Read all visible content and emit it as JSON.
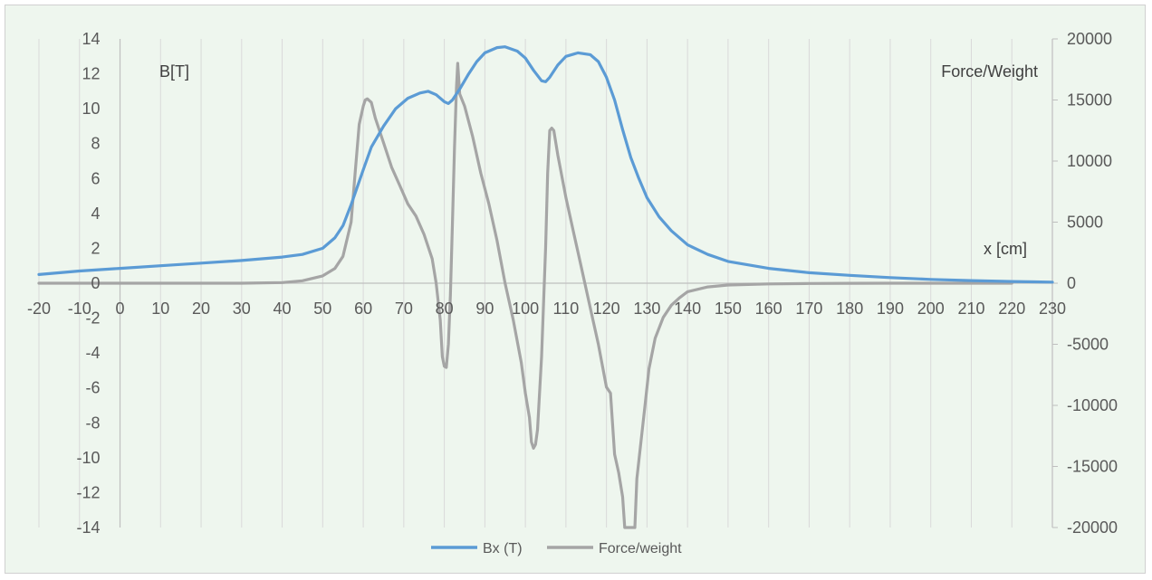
{
  "chart_data": {
    "type": "line",
    "title": "",
    "xlabel": "x [cm]",
    "ylabel_left": "B[T]",
    "ylabel_right": "Force/Weight",
    "xlim": [
      -20,
      230
    ],
    "ylim_left": [
      -14,
      14
    ],
    "ylim_right": [
      -20000,
      20000
    ],
    "grid": "vertical",
    "legend": "bottom",
    "x_ticks": [
      "-20",
      "-10",
      "0",
      "10",
      "20",
      "30",
      "40",
      "50",
      "60",
      "70",
      "80",
      "90",
      "100",
      "110",
      "120",
      "130",
      "140",
      "150",
      "160",
      "170",
      "180",
      "190",
      "200",
      "210",
      "220",
      "230"
    ],
    "y_left_ticks": [
      "14",
      "12",
      "10",
      "8",
      "6",
      "4",
      "2",
      "0",
      "-2",
      "-4",
      "-6",
      "-8",
      "-10",
      "-12",
      "-14"
    ],
    "y_right_ticks": [
      "20000",
      "15000",
      "10000",
      "5000",
      "0",
      "-5000",
      "-10000",
      "-15000",
      "-20000"
    ],
    "series": [
      {
        "name": "Bx (T)",
        "axis": "left",
        "color": "#5b9bd5",
        "points": [
          [
            -20,
            0.5
          ],
          [
            -10,
            0.7
          ],
          [
            0,
            0.85
          ],
          [
            10,
            1.0
          ],
          [
            20,
            1.15
          ],
          [
            30,
            1.3
          ],
          [
            40,
            1.5
          ],
          [
            45,
            1.65
          ],
          [
            50,
            2.0
          ],
          [
            53,
            2.6
          ],
          [
            55,
            3.3
          ],
          [
            57,
            4.5
          ],
          [
            60,
            6.5
          ],
          [
            62,
            7.8
          ],
          [
            65,
            9.0
          ],
          [
            68,
            10.0
          ],
          [
            71,
            10.6
          ],
          [
            74,
            10.9
          ],
          [
            76,
            11.0
          ],
          [
            78,
            10.8
          ],
          [
            80,
            10.4
          ],
          [
            81,
            10.3
          ],
          [
            82,
            10.5
          ],
          [
            84,
            11.2
          ],
          [
            86,
            12.0
          ],
          [
            88,
            12.7
          ],
          [
            90,
            13.2
          ],
          [
            93,
            13.5
          ],
          [
            95,
            13.55
          ],
          [
            98,
            13.3
          ],
          [
            100,
            12.9
          ],
          [
            102,
            12.2
          ],
          [
            104,
            11.6
          ],
          [
            105,
            11.55
          ],
          [
            106,
            11.8
          ],
          [
            108,
            12.5
          ],
          [
            110,
            13.0
          ],
          [
            113,
            13.2
          ],
          [
            116,
            13.1
          ],
          [
            118,
            12.7
          ],
          [
            120,
            11.8
          ],
          [
            122,
            10.5
          ],
          [
            124,
            8.8
          ],
          [
            126,
            7.2
          ],
          [
            128,
            6.0
          ],
          [
            130,
            4.9
          ],
          [
            133,
            3.8
          ],
          [
            136,
            3.0
          ],
          [
            140,
            2.2
          ],
          [
            145,
            1.65
          ],
          [
            150,
            1.25
          ],
          [
            160,
            0.85
          ],
          [
            170,
            0.6
          ],
          [
            180,
            0.45
          ],
          [
            190,
            0.32
          ],
          [
            200,
            0.22
          ],
          [
            210,
            0.15
          ],
          [
            220,
            0.1
          ],
          [
            230,
            0.06
          ]
        ]
      },
      {
        "name": "Force/weight",
        "axis": "right",
        "color": "#a5a5a5",
        "points": [
          [
            -20,
            0
          ],
          [
            30,
            0
          ],
          [
            40,
            50
          ],
          [
            45,
            200
          ],
          [
            50,
            600
          ],
          [
            53,
            1200
          ],
          [
            55,
            2200
          ],
          [
            57,
            5000
          ],
          [
            58,
            9000
          ],
          [
            59,
            13000
          ],
          [
            60,
            14500
          ],
          [
            60.5,
            15000
          ],
          [
            61,
            15100
          ],
          [
            62,
            14800
          ],
          [
            63,
            13500
          ],
          [
            65,
            11500
          ],
          [
            67,
            9500
          ],
          [
            69,
            8000
          ],
          [
            71,
            6500
          ],
          [
            73,
            5500
          ],
          [
            75,
            4000
          ],
          [
            77,
            2000
          ],
          [
            78,
            0
          ],
          [
            79,
            -3000
          ],
          [
            79.5,
            -6000
          ],
          [
            80,
            -6800
          ],
          [
            80.5,
            -6900
          ],
          [
            81,
            -5000
          ],
          [
            81.5,
            -1000
          ],
          [
            82,
            5000
          ],
          [
            82.5,
            11000
          ],
          [
            83,
            16000
          ],
          [
            83.3,
            18000
          ],
          [
            83.8,
            15500
          ],
          [
            85,
            14500
          ],
          [
            87,
            12000
          ],
          [
            89,
            9000
          ],
          [
            91,
            6500
          ],
          [
            93,
            3500
          ],
          [
            95,
            0
          ],
          [
            97,
            -3000
          ],
          [
            99,
            -6500
          ],
          [
            100,
            -9000
          ],
          [
            101,
            -11000
          ],
          [
            101.5,
            -13000
          ],
          [
            102,
            -13500
          ],
          [
            102.5,
            -13200
          ],
          [
            103,
            -12000
          ],
          [
            104,
            -6000
          ],
          [
            105,
            3000
          ],
          [
            105.5,
            9000
          ],
          [
            106,
            12500
          ],
          [
            106.5,
            12700
          ],
          [
            107,
            12500
          ],
          [
            108,
            10500
          ],
          [
            110,
            7000
          ],
          [
            112,
            4000
          ],
          [
            114,
            1000
          ],
          [
            116,
            -2000
          ],
          [
            118,
            -5000
          ],
          [
            120,
            -8500
          ],
          [
            121,
            -9000
          ],
          [
            122,
            -14000
          ],
          [
            123,
            -15500
          ],
          [
            124,
            -17500
          ],
          [
            124.5,
            -20000
          ],
          [
            125,
            -21000
          ],
          [
            126,
            -22000
          ],
          [
            127,
            -20000
          ],
          [
            127.5,
            -16000
          ],
          [
            128.5,
            -13000
          ],
          [
            129.5,
            -10000
          ],
          [
            130.5,
            -7000
          ],
          [
            132,
            -4500
          ],
          [
            134,
            -2800
          ],
          [
            136,
            -1800
          ],
          [
            138,
            -1200
          ],
          [
            140,
            -700
          ],
          [
            145,
            -300
          ],
          [
            150,
            -150
          ],
          [
            160,
            -60
          ],
          [
            170,
            -20
          ],
          [
            180,
            -5
          ],
          [
            190,
            0
          ],
          [
            220,
            0
          ]
        ]
      }
    ]
  }
}
